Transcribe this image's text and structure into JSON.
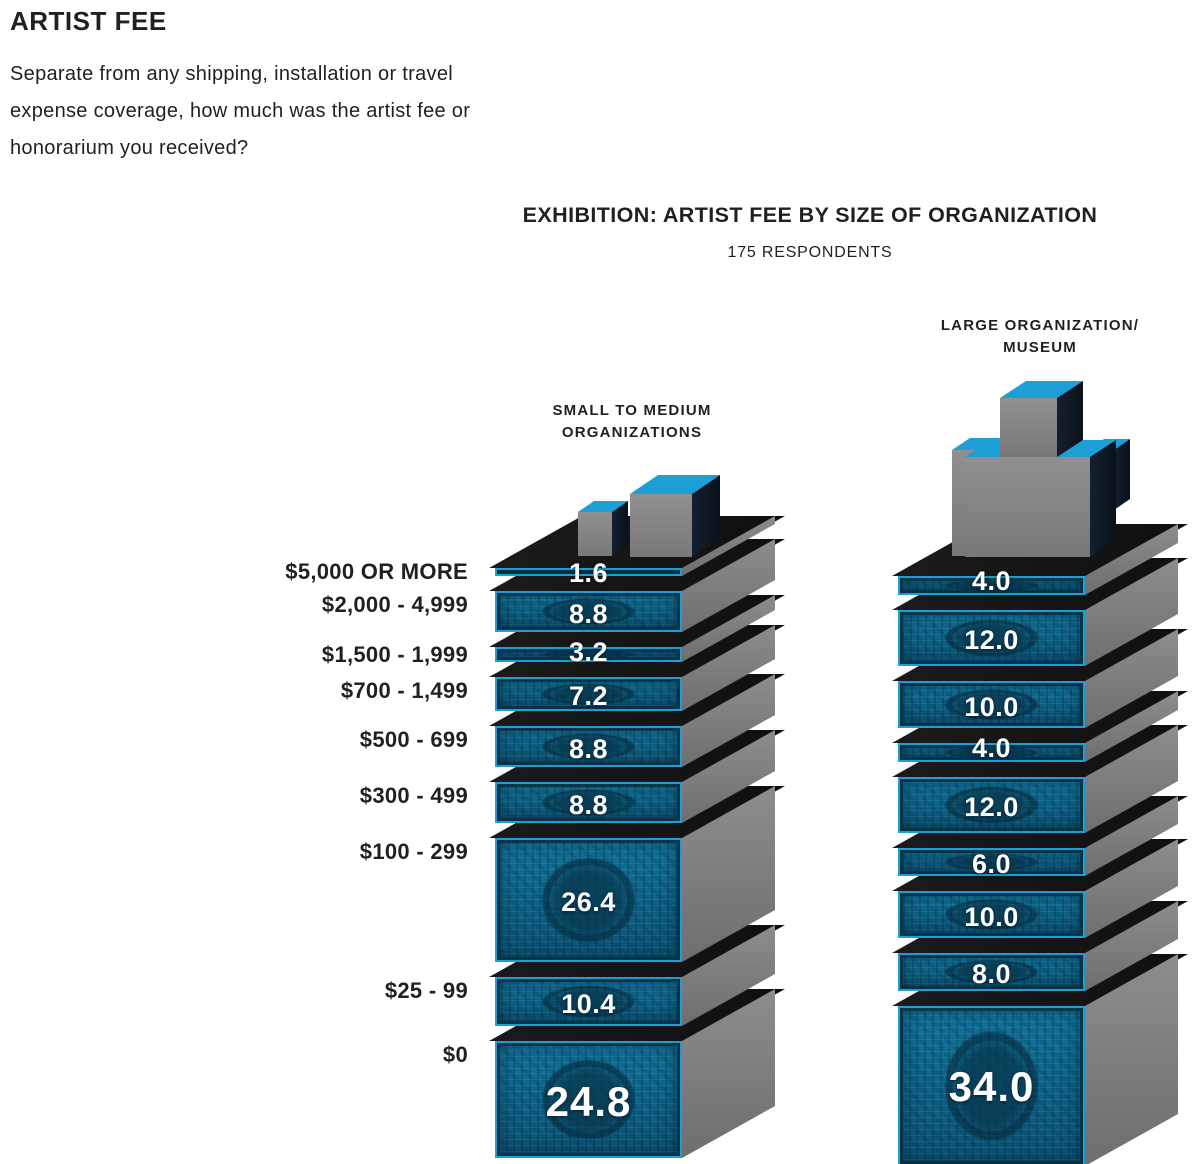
{
  "page": {
    "heading": "ARTIST FEE",
    "question_lines": [
      "Separate from any shipping, installation or travel",
      "expense coverage, how much was the artist fee or",
      "honorarium you received?"
    ]
  },
  "chart": {
    "title": "EXHIBITION: ARTIST FEE BY SIZE OF ORGANIZATION",
    "subtitle": "175 RESPONDENTS",
    "columns": [
      {
        "header_line1": "SMALL TO MEDIUM",
        "header_line2": "ORGANIZATIONS"
      },
      {
        "header_line1": "LARGE ORGANIZATION/",
        "header_line2": "MUSEUM"
      }
    ]
  },
  "chart_data": {
    "type": "bar",
    "title": "EXHIBITION: ARTIST FEE BY SIZE OF ORGANIZATION",
    "subtitle": "175 RESPONDENTS",
    "respondents": 175,
    "value_unit": "percent of respondents",
    "orientation": "vertical stacked pictorial (3D money piles)",
    "categories": [
      "$5,000 OR MORE",
      "$2,000 - 4,999",
      "$1,500 - 1,999",
      "$700 - 1,499",
      "$500 - 699",
      "$300 - 499",
      "$100 - 299",
      "$25 - 99",
      "$0"
    ],
    "series": [
      {
        "name": "SMALL TO MEDIUM ORGANIZATIONS",
        "values": [
          1.6,
          8.8,
          3.2,
          7.2,
          8.8,
          8.8,
          26.4,
          10.4,
          24.8
        ]
      },
      {
        "name": "LARGE ORGANIZATION/MUSEUM",
        "values": [
          4.0,
          12.0,
          10.0,
          4.0,
          12.0,
          6.0,
          10.0,
          8.0,
          34.0
        ]
      }
    ]
  },
  "colors": {
    "accent_blue": "#1d9ed6",
    "bill_teal": "#0e6487",
    "bill_dark": "#083d55",
    "ink_black": "#141414",
    "side_gray": "#7d7d7d",
    "text": "#231f20",
    "value_text": "#ffffff"
  }
}
